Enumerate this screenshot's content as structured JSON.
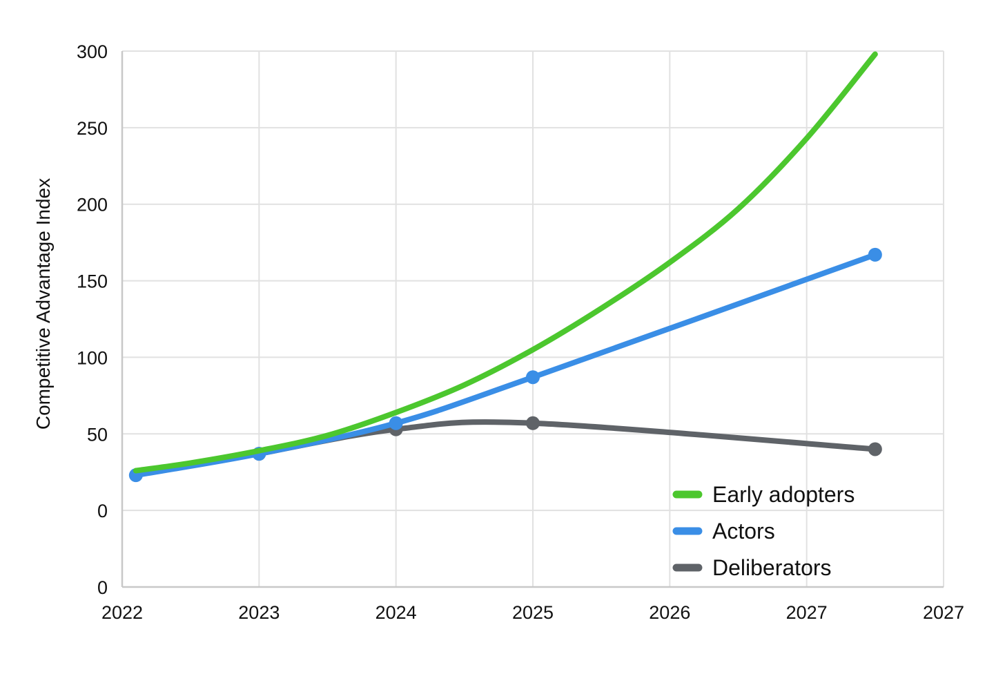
{
  "chart_data": {
    "type": "line",
    "title": "",
    "xlabel": "",
    "ylabel": "Competitive Advantage Index",
    "x_tick_labels": [
      "2022",
      "2023",
      "2024",
      "2025",
      "2026",
      "2027",
      "2027"
    ],
    "y_tick_labels": [
      "0",
      "0",
      "50",
      "100",
      "150",
      "200",
      "250",
      "300"
    ],
    "ylim": [
      -50,
      300
    ],
    "xlim": [
      2022,
      2028
    ],
    "grid": true,
    "legend_position": "bottom-right",
    "series": [
      {
        "name": "Early adopters",
        "color": "#4cc72e",
        "markers": false,
        "x": [
          2022.1,
          2022.5,
          2023.0,
          2023.5,
          2024.0,
          2024.5,
          2025.0,
          2025.5,
          2026.0,
          2026.5,
          2027.0,
          2027.5
        ],
        "y": [
          26,
          31,
          39,
          49,
          64,
          82,
          105,
          132,
          162,
          197,
          243,
          298
        ]
      },
      {
        "name": "Actors",
        "color": "#3a8ee6",
        "markers": true,
        "x": [
          2022.1,
          2023.0,
          2024.0,
          2025.0,
          2027.5
        ],
        "y": [
          23,
          37,
          57,
          87,
          167
        ]
      },
      {
        "name": "Deliberators",
        "color": "#5f6368",
        "markers": true,
        "x": [
          2023.0,
          2024.0,
          2025.0,
          2027.5
        ],
        "y": [
          37,
          53,
          57,
          40
        ]
      }
    ]
  }
}
